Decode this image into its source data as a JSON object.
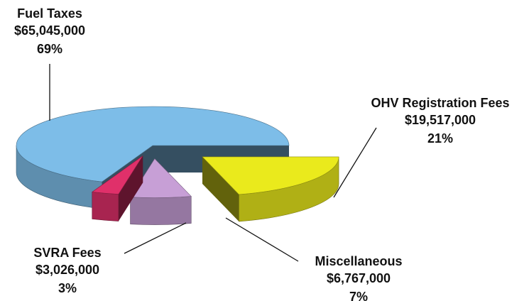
{
  "chart_data": {
    "type": "pie",
    "categories": [
      "Fuel Taxes",
      "OHV Registration Fees",
      "Miscellaneous",
      "SVRA Fees"
    ],
    "values": [
      65045000,
      19517000,
      6767000,
      3026000
    ],
    "value_labels": [
      "$65,045,000",
      "$19,517,000",
      "$6,767,000",
      "$3,026,000"
    ],
    "percents": [
      69,
      21,
      7,
      3
    ],
    "percent_labels": [
      "69%",
      "21%",
      "7%",
      "3%"
    ],
    "colors": [
      "#7dbde8",
      "#eaea1c",
      "#c79fd6",
      "#e0306a"
    ]
  }
}
